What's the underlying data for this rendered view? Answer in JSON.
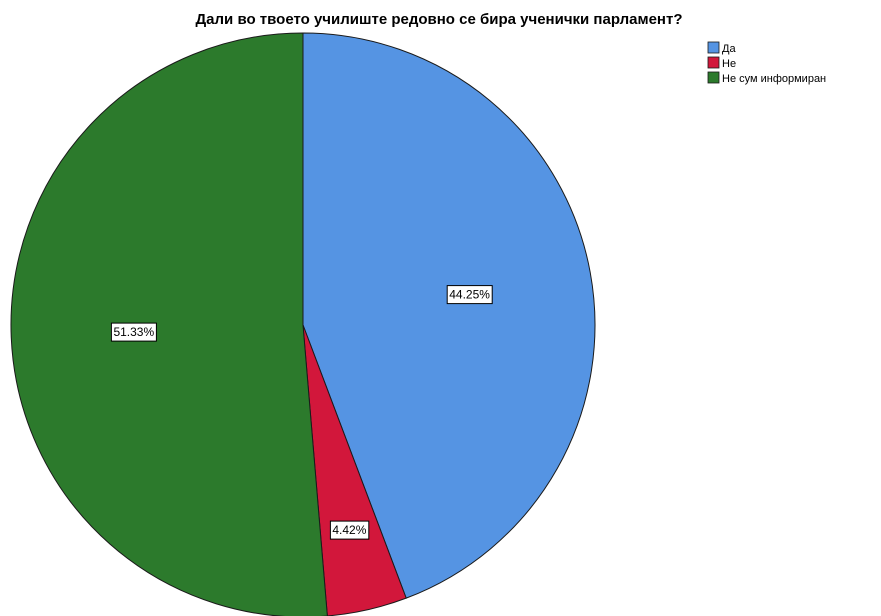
{
  "chart_data": {
    "type": "pie",
    "title": "Дали во твоето училиште редовно се бира ученички парламент?",
    "categories": [
      "Да",
      "Не",
      "Не сум информиран"
    ],
    "values": [
      44.25,
      4.42,
      51.33
    ],
    "data_labels": [
      "44.25%",
      "4.42%",
      "51.33%"
    ],
    "colors": [
      "#5594e3",
      "#d2173b",
      "#2c7a2c"
    ],
    "legend": "top-right",
    "start_angle": "12 o'clock, clockwise"
  }
}
